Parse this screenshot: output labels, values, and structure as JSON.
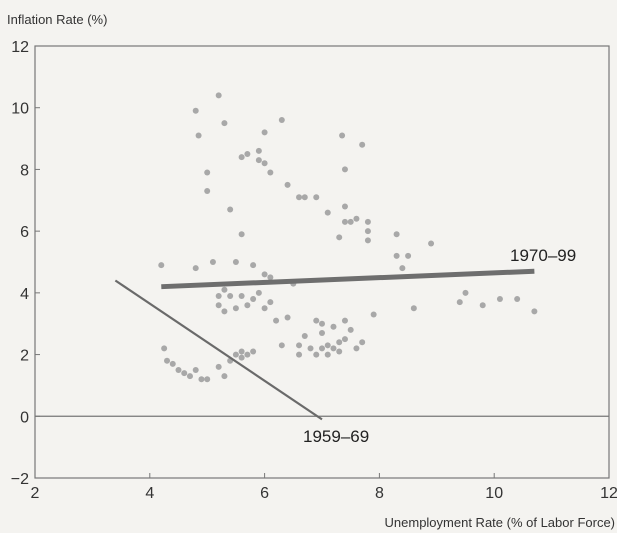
{
  "chart_data": {
    "type": "scatter",
    "title": "",
    "ylabel": "Inflation Rate (%)",
    "xlabel": "Unemployment Rate (% of Labor Force)",
    "xlim": [
      2,
      12
    ],
    "ylim": [
      -2,
      12
    ],
    "xticks": [
      2,
      4,
      6,
      8,
      10,
      12
    ],
    "yticks": [
      -2,
      0,
      2,
      4,
      6,
      8,
      10,
      12
    ],
    "grid": false,
    "colors": {
      "points": "#a8a8a8",
      "line_1970_99": "#6e6e6e",
      "line_1959_69": "#6a6a6a",
      "zero_line": "#777777",
      "frame": "#777777"
    },
    "points": [
      [
        4.2,
        4.9
      ],
      [
        4.8,
        4.8
      ],
      [
        5.1,
        5.0
      ],
      [
        5.5,
        5.0
      ],
      [
        5.8,
        4.9
      ],
      [
        4.8,
        9.9
      ],
      [
        5.2,
        10.4
      ],
      [
        5.3,
        9.5
      ],
      [
        4.85,
        9.1
      ],
      [
        5.0,
        7.9
      ],
      [
        5.0,
        7.3
      ],
      [
        5.4,
        6.7
      ],
      [
        5.6,
        5.9
      ],
      [
        5.6,
        8.4
      ],
      [
        5.7,
        8.5
      ],
      [
        5.9,
        8.6
      ],
      [
        5.9,
        8.3
      ],
      [
        6.0,
        9.2
      ],
      [
        6.0,
        8.2
      ],
      [
        6.1,
        7.9
      ],
      [
        6.3,
        9.6
      ],
      [
        6.4,
        7.5
      ],
      [
        6.6,
        7.1
      ],
      [
        6.7,
        7.1
      ],
      [
        6.9,
        7.1
      ],
      [
        7.1,
        6.6
      ],
      [
        7.35,
        9.1
      ],
      [
        7.4,
        8.0
      ],
      [
        7.4,
        6.8
      ],
      [
        7.4,
        6.3
      ],
      [
        7.5,
        6.3
      ],
      [
        7.6,
        6.4
      ],
      [
        7.7,
        8.8
      ],
      [
        7.8,
        6.3
      ],
      [
        7.8,
        6.0
      ],
      [
        7.8,
        5.7
      ],
      [
        7.3,
        5.8
      ],
      [
        8.3,
        5.9
      ],
      [
        8.3,
        5.2
      ],
      [
        8.5,
        5.2
      ],
      [
        8.9,
        5.6
      ],
      [
        8.4,
        4.8
      ],
      [
        8.6,
        3.5
      ],
      [
        9.4,
        3.7
      ],
      [
        9.5,
        4.0
      ],
      [
        9.8,
        3.6
      ],
      [
        10.1,
        3.8
      ],
      [
        10.4,
        3.8
      ],
      [
        10.7,
        3.4
      ],
      [
        5.2,
        3.9
      ],
      [
        5.3,
        4.1
      ],
      [
        5.2,
        3.6
      ],
      [
        5.3,
        3.4
      ],
      [
        5.4,
        3.9
      ],
      [
        5.5,
        3.5
      ],
      [
        5.6,
        3.9
      ],
      [
        5.7,
        3.6
      ],
      [
        5.9,
        4.0
      ],
      [
        6.0,
        3.5
      ],
      [
        6.1,
        3.7
      ],
      [
        5.8,
        3.8
      ],
      [
        6.0,
        4.6
      ],
      [
        6.1,
        4.5
      ],
      [
        6.2,
        3.1
      ],
      [
        6.4,
        3.2
      ],
      [
        6.5,
        4.3
      ],
      [
        6.6,
        2.3
      ],
      [
        6.6,
        2.0
      ],
      [
        6.7,
        2.6
      ],
      [
        6.8,
        2.2
      ],
      [
        6.9,
        3.1
      ],
      [
        7.0,
        2.7
      ],
      [
        7.0,
        3.0
      ],
      [
        7.1,
        2.3
      ],
      [
        7.1,
        2.0
      ],
      [
        7.2,
        2.2
      ],
      [
        7.2,
        2.9
      ],
      [
        7.3,
        2.4
      ],
      [
        7.3,
        2.1
      ],
      [
        7.4,
        2.5
      ],
      [
        7.4,
        3.1
      ],
      [
        7.5,
        2.8
      ],
      [
        7.6,
        2.2
      ],
      [
        7.7,
        2.4
      ],
      [
        7.9,
        3.3
      ],
      [
        6.3,
        2.3
      ],
      [
        6.9,
        2.0
      ],
      [
        7.0,
        2.2
      ],
      [
        4.25,
        2.2
      ],
      [
        4.3,
        1.8
      ],
      [
        4.4,
        1.7
      ],
      [
        4.5,
        1.5
      ],
      [
        4.6,
        1.4
      ],
      [
        4.7,
        1.3
      ],
      [
        4.8,
        1.5
      ],
      [
        4.9,
        1.2
      ],
      [
        5.0,
        1.2
      ],
      [
        5.2,
        1.6
      ],
      [
        5.3,
        1.3
      ],
      [
        5.5,
        2.0
      ],
      [
        5.6,
        1.9
      ],
      [
        5.7,
        2.0
      ],
      [
        5.8,
        2.1
      ],
      [
        5.4,
        1.8
      ],
      [
        5.6,
        2.1
      ]
    ],
    "lines": [
      {
        "name": "1970–99",
        "from": [
          4.2,
          4.2
        ],
        "to": [
          10.7,
          4.7
        ]
      },
      {
        "name": "1959–69",
        "from": [
          3.4,
          4.4
        ],
        "to": [
          7.0,
          -0.1
        ]
      }
    ],
    "zero_line": 0
  }
}
